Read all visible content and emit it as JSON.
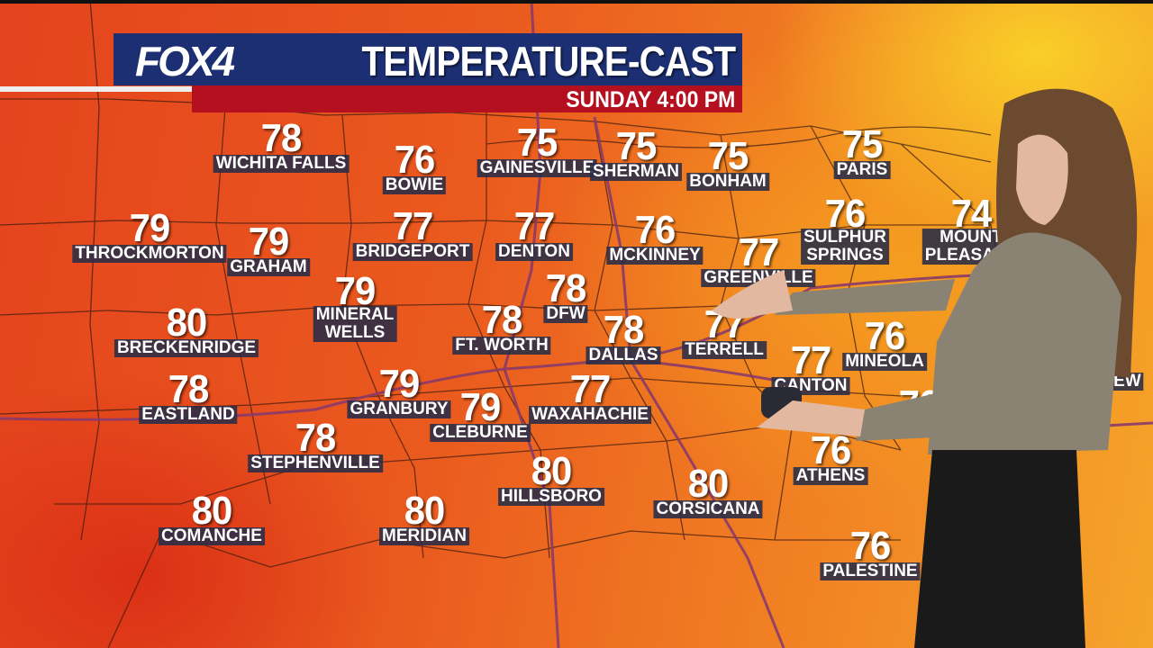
{
  "header": {
    "logo": "FOX4",
    "title": "TEMPERATURE-CAST",
    "subtitle": "SUNDAY  4:00 PM"
  },
  "colors": {
    "banner_blue": "#1b2f72",
    "banner_red": "#b5101f",
    "label_bg": "#282c48",
    "highway": "#8a3a6a"
  },
  "cities": [
    {
      "name": "WICHITA FALLS",
      "temp": "78"
    },
    {
      "name": "BOWIE",
      "temp": "76"
    },
    {
      "name": "GAINESVILLE",
      "temp": "75"
    },
    {
      "name": "SHERMAN",
      "temp": "75"
    },
    {
      "name": "BONHAM",
      "temp": "75"
    },
    {
      "name": "PARIS",
      "temp": "75"
    },
    {
      "name": "THROCKMORTON",
      "temp": "79"
    },
    {
      "name": "GRAHAM",
      "temp": "79"
    },
    {
      "name": "BRIDGEPORT",
      "temp": "77"
    },
    {
      "name": "DENTON",
      "temp": "77"
    },
    {
      "name": "MCKINNEY",
      "temp": "76"
    },
    {
      "name": "GREENVILLE",
      "temp": "77"
    },
    {
      "name": "SULPHUR\nSPRINGS",
      "temp": "76"
    },
    {
      "name": "MOUNT\nPLEASANT",
      "temp": "74"
    },
    {
      "name": "MINERAL\nWELLS",
      "temp": "79"
    },
    {
      "name": "DFW",
      "temp": "78"
    },
    {
      "name": "FT. WORTH",
      "temp": "78"
    },
    {
      "name": "DALLAS",
      "temp": "78"
    },
    {
      "name": "TERRELL",
      "temp": "77"
    },
    {
      "name": "MINEOLA",
      "temp": "76"
    },
    {
      "name": "CANTON",
      "temp": "77"
    },
    {
      "name": "BRECKENRIDGE",
      "temp": "80"
    },
    {
      "name": "EASTLAND",
      "temp": "78"
    },
    {
      "name": "GRANBURY",
      "temp": "79"
    },
    {
      "name": "CLEBURNE",
      "temp": "79"
    },
    {
      "name": "WAXAHACHIE",
      "temp": "77"
    },
    {
      "name": "",
      "temp": "76"
    },
    {
      "name": "LONGVIEW",
      "temp": ""
    },
    {
      "name": "STEPHENVILLE",
      "temp": "78"
    },
    {
      "name": "ATHENS",
      "temp": "76"
    },
    {
      "name": "HILLSBORO",
      "temp": "80"
    },
    {
      "name": "CORSICANA",
      "temp": "80"
    },
    {
      "name": "COMANCHE",
      "temp": "80"
    },
    {
      "name": "MERIDIAN",
      "temp": "80"
    },
    {
      "name": "PALESTINE",
      "temp": "76"
    }
  ]
}
